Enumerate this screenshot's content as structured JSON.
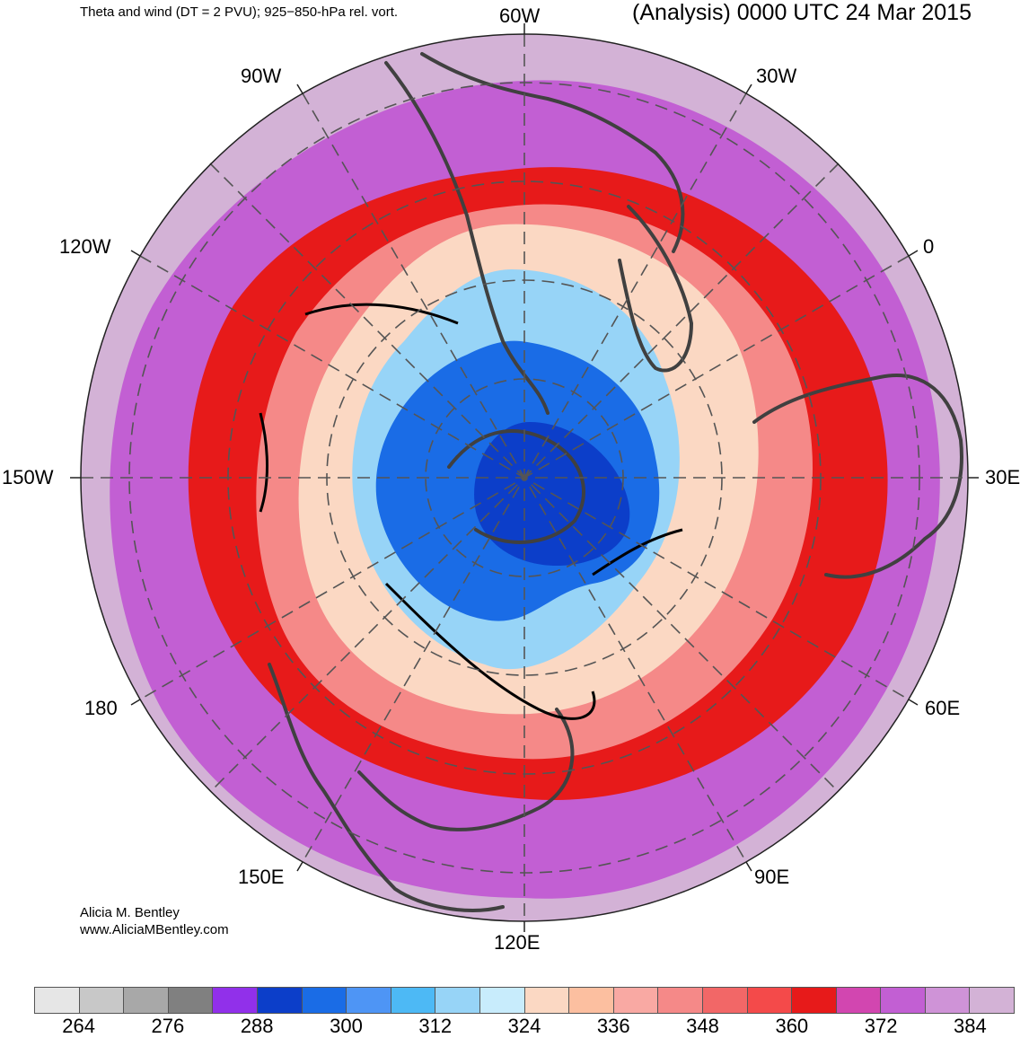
{
  "header": {
    "title_left": "Theta and wind (DT = 2 PVU); 925−850-hPa rel. vort.",
    "title_right": "(Analysis) 0000 UTC 24 Mar 2015"
  },
  "longitude_labels": [
    "60W",
    "30W",
    "0",
    "30E",
    "60E",
    "90E",
    "120E",
    "150E",
    "180",
    "150W",
    "120W",
    "90W"
  ],
  "credit": {
    "author": "Alicia M. Bentley",
    "website": "www.AliciaMBentley.com"
  },
  "colorbar": {
    "colors": [
      "#e6e6e6",
      "#c8c8c8",
      "#a8a8a8",
      "#808080",
      "#9130ea",
      "#0c3ec9",
      "#1a6ce6",
      "#4e95f5",
      "#4db9f5",
      "#97d4f7",
      "#c8ecfc",
      "#fbd8c3",
      "#fcbfa0",
      "#f9a9a3",
      "#f58988",
      "#f26767",
      "#f44a4a",
      "#e71a1a",
      "#d246b0",
      "#c25fd3",
      "#cf93d7",
      "#d3b2d6"
    ],
    "tick_labels": [
      "264",
      "276",
      "288",
      "300",
      "312",
      "324",
      "336",
      "348",
      "360",
      "372",
      "384"
    ]
  },
  "map_colors": {
    "outer": "#d3b2d6",
    "ring_magenta": "#c25fd3",
    "ring_red": "#e71a1a",
    "ring_salmon": "#f58988",
    "ring_peach": "#fbd8c3",
    "core_lightblue": "#97d4f7",
    "core_blue": "#1a6ce6",
    "core_darkblue": "#0c3ec9",
    "coast": "#404040"
  }
}
